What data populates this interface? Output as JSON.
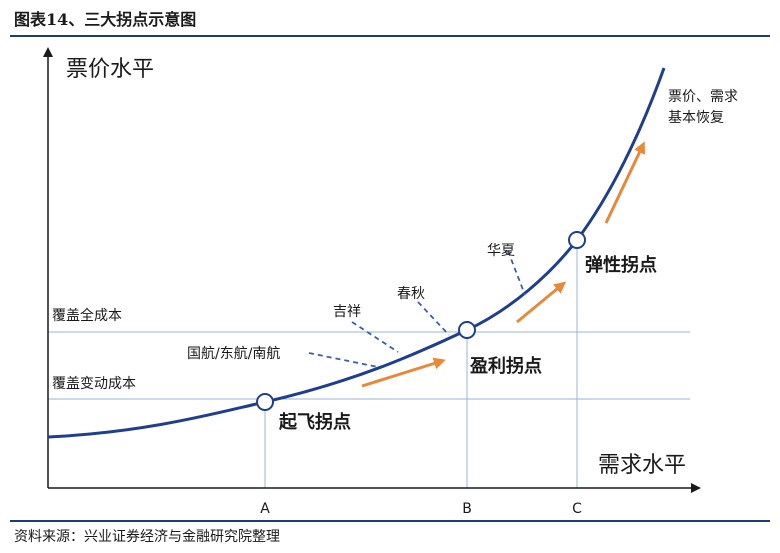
{
  "figure": {
    "title": "图表14、三大拐点示意图",
    "source": "资料来源：兴业证券经济与金融研究院整理"
  },
  "axes": {
    "y_label": "票价水平",
    "x_label": "需求水平",
    "x_ticks": [
      "A",
      "B",
      "C"
    ]
  },
  "levels": {
    "full_cost": "覆盖全成本",
    "variable_cost": "覆盖变动成本"
  },
  "points": {
    "takeoff": "起飞拐点",
    "profit": "盈利拐点",
    "elastic": "弹性拐点"
  },
  "airlines": {
    "big3": "国航/东航/南航",
    "juneyao": "吉祥",
    "spring": "春秋",
    "huaxia": "华夏"
  },
  "recovery": {
    "line1": "票价、需求",
    "line2": "基本恢复"
  },
  "colors": {
    "curve": "#1f3f8c",
    "guide": "#9bb4d8",
    "arrow": "#e8893a",
    "axis": "#1a1a1a"
  }
}
